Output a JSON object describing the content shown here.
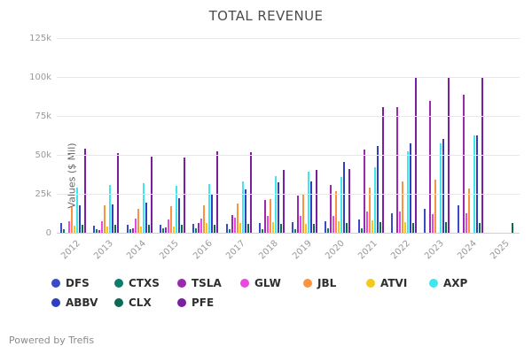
{
  "footer": {
    "text": "Powered by Trefis"
  },
  "chart_data": {
    "type": "bar",
    "title": "TOTAL REVENUE",
    "ylabel": "Values ($ Mil)",
    "xlabel": "",
    "categories": [
      "2012",
      "2013",
      "2014",
      "2015",
      "2016",
      "2017",
      "2018",
      "2019",
      "2020",
      "2021",
      "2022",
      "2023",
      "2024",
      "2025"
    ],
    "ylim": [
      0,
      125000
    ],
    "ytick_step": 25000,
    "ytick_labels": [
      "0",
      "25k",
      "50k",
      "75k",
      "100k",
      "125k"
    ],
    "grid": true,
    "legend_position": "bottom",
    "units": "$ Mil",
    "series": [
      {
        "name": "DFS",
        "color": "#3b4bc8",
        "values": [
          7000,
          5000,
          5500,
          5500,
          6000,
          6500,
          7000,
          7500,
          8000,
          9000,
          13000,
          16000,
          18000,
          null
        ]
      },
      {
        "name": "CTXS",
        "color": "#0b7c6e",
        "values": [
          2600,
          2900,
          3100,
          3300,
          3400,
          2800,
          3000,
          3000,
          3200,
          3200,
          null,
          null,
          null,
          null
        ]
      },
      {
        "name": "TSLA",
        "color": "#9c27b0",
        "values": [
          400,
          2000,
          3200,
          4000,
          7000,
          11800,
          21500,
          24600,
          31500,
          53800,
          81500,
          85000,
          89000,
          null
        ]
      },
      {
        "name": "GLW",
        "color": "#e84ae0",
        "values": [
          8000,
          7800,
          9700,
          9100,
          9400,
          10100,
          11300,
          11500,
          11300,
          14100,
          14200,
          12600,
          13100,
          null
        ]
      },
      {
        "name": "JBL",
        "color": "#fa9441",
        "values": [
          17200,
          18300,
          15800,
          17900,
          18400,
          19100,
          22100,
          25300,
          27300,
          29300,
          33500,
          34700,
          28900,
          null
        ]
      },
      {
        "name": "ATVI",
        "color": "#f5c81b",
        "values": [
          4900,
          4600,
          4400,
          4700,
          6600,
          7000,
          7500,
          6500,
          8100,
          8800,
          7500,
          null,
          null,
          null
        ]
      },
      {
        "name": "AXP",
        "color": "#3ee6f0",
        "values": [
          29600,
          31000,
          32300,
          30800,
          32100,
          33500,
          36700,
          39900,
          36100,
          42400,
          52900,
          58000,
          63000,
          null
        ]
      },
      {
        "name": "ABBV",
        "color": "#2f3fbe",
        "values": [
          18400,
          18800,
          20000,
          22900,
          25600,
          28200,
          32800,
          33300,
          45800,
          56200,
          58100,
          61000,
          63000,
          null
        ]
      },
      {
        "name": "CLX",
        "color": "#0a6a54",
        "values": [
          5500,
          5600,
          5600,
          5700,
          5800,
          6000,
          6100,
          6200,
          6700,
          7300,
          7100,
          7400,
          7100,
          7100
        ]
      },
      {
        "name": "PFE",
        "color": "#7b1fa2",
        "values": [
          54700,
          51600,
          49600,
          48900,
          52800,
          52500,
          40800,
          41200,
          41700,
          81300,
          100300,
          100000,
          100000,
          null
        ]
      }
    ]
  }
}
